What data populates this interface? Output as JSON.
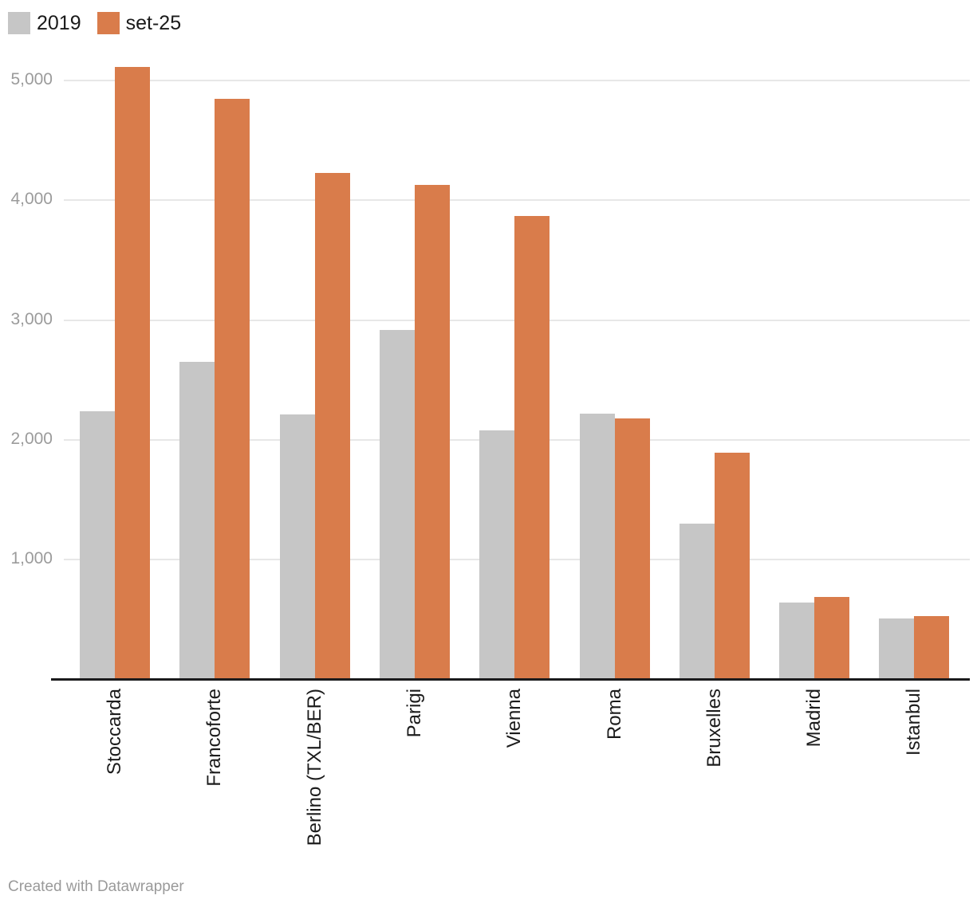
{
  "chart_data": {
    "type": "bar",
    "title": "",
    "xlabel": "",
    "ylabel": "",
    "categories": [
      "Stoccarda",
      "Francoforte",
      "Berlino (TXL/BER)",
      "Parigi",
      "Vienna",
      "Roma",
      "Bruxelles",
      "Madrid",
      "Istanbul"
    ],
    "series": [
      {
        "name": "2019",
        "color": "#c6c6c6",
        "values": [
          2240,
          2650,
          2210,
          2920,
          2080,
          2220,
          1300,
          640,
          510
        ]
      },
      {
        "name": "set-25",
        "color": "#d97c4b",
        "values": [
          5110,
          4850,
          4230,
          4130,
          3870,
          2180,
          1890,
          690,
          530
        ]
      }
    ],
    "y_ticks": [
      1000,
      2000,
      3000,
      4000,
      5000
    ],
    "y_tick_labels": [
      "1,000",
      "2,000",
      "3,000",
      "4,000",
      "5,000"
    ],
    "ylim": [
      0,
      5670
    ],
    "grid": true,
    "legend_position": "top-left",
    "x_label_rotation": -90
  },
  "legend": {
    "items": [
      {
        "label": "2019",
        "color": "#c6c6c6"
      },
      {
        "label": "set-25",
        "color": "#d97c4b"
      }
    ]
  },
  "colors": {
    "bar_2019": "#c6c6c6",
    "bar_set25": "#d97c4b",
    "gridline": "#e7e7e7",
    "axis_line": "#1b1b1d",
    "tick_text": "#9b9b9b",
    "category_text": "#1c1c1c",
    "footer_text": "#9a9a9a"
  },
  "footer": {
    "text": "Created with Datawrapper"
  }
}
